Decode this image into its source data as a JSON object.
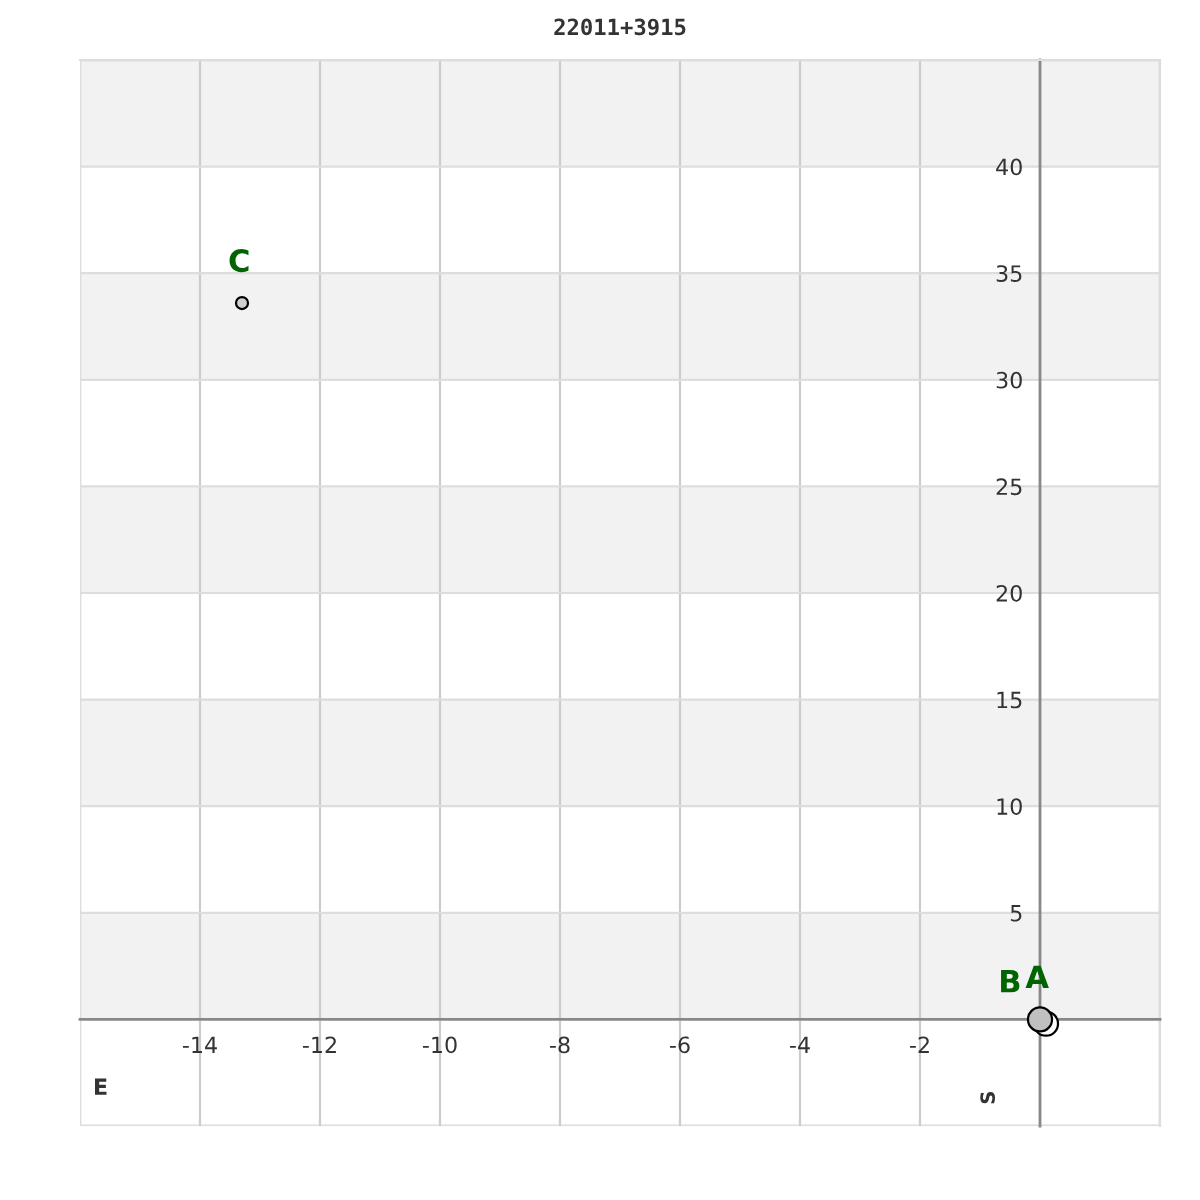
{
  "chart_data": {
    "type": "bubble",
    "title": "22011+3915",
    "series": [
      {
        "name": "C",
        "x": [
          -13.3
        ],
        "values": [
          33.6
        ],
        "sizes": [
          0.25
        ],
        "color": "#d0d0d0"
      },
      {
        "name": "A",
        "x": [
          0
        ],
        "values": [
          0
        ],
        "sizes": [
          1
        ],
        "color": "#c0c0c0"
      },
      {
        "name": "B",
        "x": [
          0.1
        ],
        "values": [
          -0.2
        ],
        "sizes": [
          1
        ],
        "color": "#ffffff"
      }
    ],
    "xlim": [
      -16,
      2
    ],
    "ylim": [
      -5,
      45
    ],
    "xticks": [
      -14,
      -12,
      -10,
      -8,
      -6,
      -4,
      -2
    ],
    "yticks": [
      5,
      10,
      15,
      20,
      25,
      30,
      35,
      40
    ],
    "grid": true,
    "bands": [
      {
        "axis": "y",
        "from": 40,
        "to": 45,
        "color": "#f2f2f2"
      },
      {
        "axis": "y",
        "from": 30,
        "to": 35,
        "color": "#f2f2f2"
      },
      {
        "axis": "y",
        "from": 20,
        "to": 25,
        "color": "#f2f2f2"
      },
      {
        "axis": "y",
        "from": 10,
        "to": 15,
        "color": "#f2f2f2"
      },
      {
        "axis": "y",
        "from": 0,
        "to": 5,
        "color": "#f2f2f2"
      }
    ],
    "annotations": [
      "E",
      "S"
    ]
  }
}
